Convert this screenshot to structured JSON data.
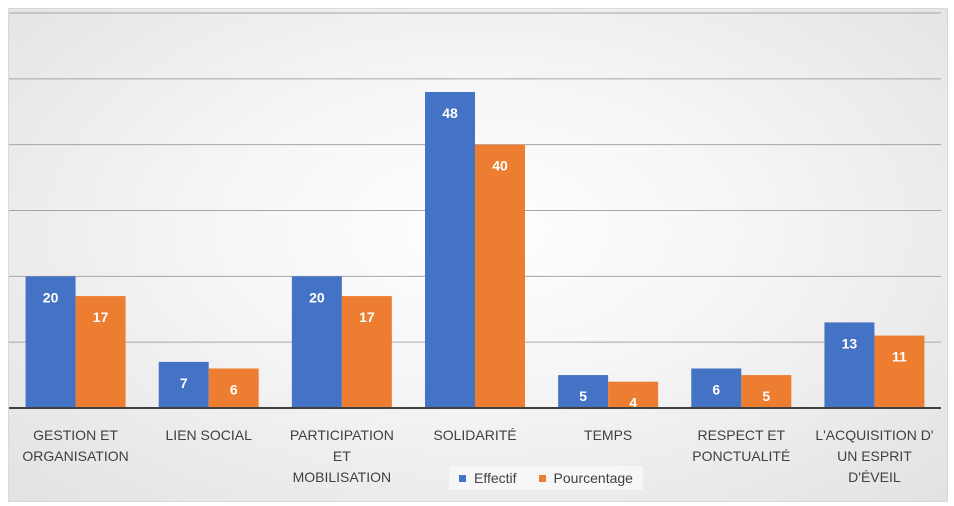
{
  "colors": {
    "effectif": "#4472C4",
    "pourcentage": "#ED7D31"
  },
  "chart_data": {
    "type": "bar",
    "categories": [
      [
        "GESTION  ET",
        "ORGANISATION"
      ],
      [
        "LIEN  SOCIAL"
      ],
      [
        "PARTICIPATION",
        "ET",
        "MOBILISATION"
      ],
      [
        "SOLIDARITÉ"
      ],
      [
        "TEMPS"
      ],
      [
        "RESPECT ET",
        "PONCTUALITÉ"
      ],
      [
        "L'ACQUISITION D'",
        "UN ESPRIT",
        "D'ÉVEIL"
      ]
    ],
    "series": [
      {
        "name": "Effectif",
        "values": [
          20,
          7,
          20,
          48,
          5,
          6,
          13
        ]
      },
      {
        "name": "Pourcentage",
        "values": [
          17,
          6,
          17,
          40,
          4,
          5,
          11
        ]
      }
    ],
    "ylim": [
      0,
      60
    ],
    "grid": true,
    "legend": "bottom"
  }
}
